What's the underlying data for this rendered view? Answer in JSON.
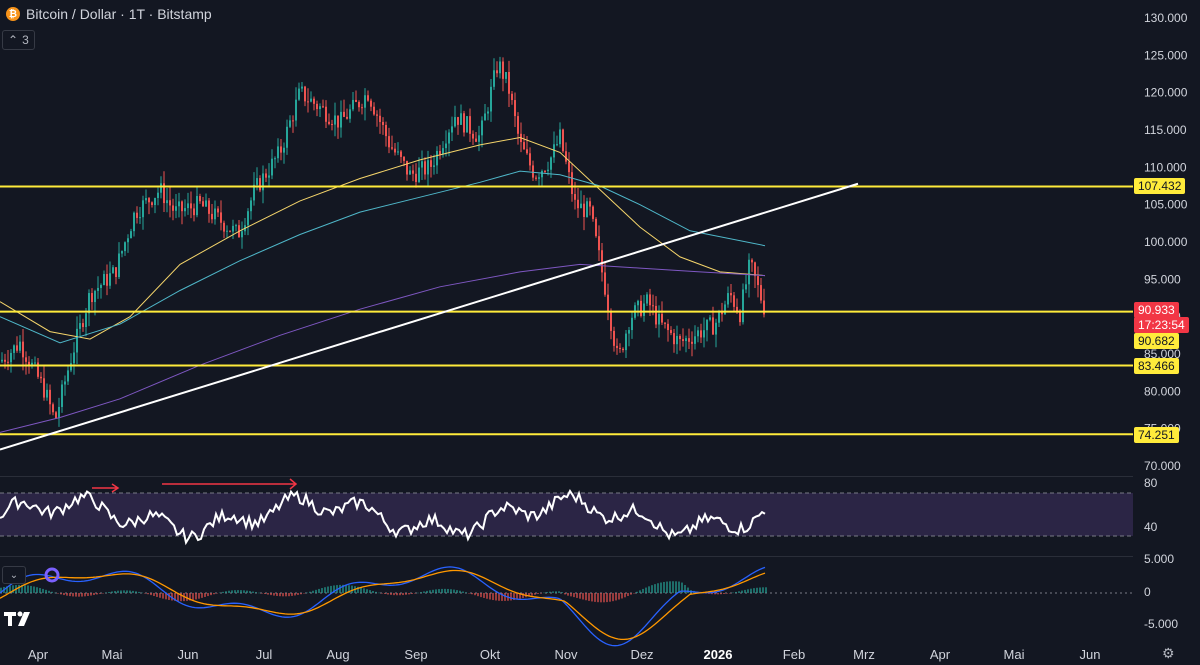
{
  "header": {
    "title": "Bitcoin / Dollar · 1T · Bitstamp",
    "indicator_toggle": "3"
  },
  "price_axis": {
    "labels": [
      "130.000",
      "125.000",
      "120.000",
      "115.000",
      "110.000",
      "105.000",
      "100.000",
      "95.000",
      "90.000",
      "85.000",
      "80.000",
      "75.000",
      "70.000"
    ],
    "values": [
      130000,
      125000,
      120000,
      115000,
      110000,
      105000,
      100000,
      95000,
      90000,
      85000,
      80000,
      75000,
      70000
    ]
  },
  "price_tags": [
    {
      "label": "107.432",
      "value": 107432,
      "color": "#ffeb3b"
    },
    {
      "label": "90.933",
      "value": 90933,
      "color": "#f23645"
    },
    {
      "label": "17:23:54",
      "value": 90933,
      "color": "#f23645",
      "sub": true
    },
    {
      "label": "90.682",
      "value": 90682,
      "color": "#ffeb3b"
    },
    {
      "label": "83.466",
      "value": 83466,
      "color": "#ffeb3b"
    },
    {
      "label": "74.251",
      "value": 74251,
      "color": "#ffeb3b"
    }
  ],
  "rsi_axis": {
    "labels": [
      "80",
      "40"
    ],
    "values": [
      80,
      40
    ]
  },
  "macd_axis": {
    "labels": [
      "5.000",
      "0",
      "-5.000"
    ],
    "values": [
      5000,
      0,
      -5000
    ]
  },
  "time_axis": {
    "labels": [
      "Apr",
      "Mai",
      "Jun",
      "Jul",
      "Aug",
      "Sep",
      "Okt",
      "Nov",
      "Dez",
      "2026",
      "Feb",
      "Mrz",
      "Apr",
      "Mai",
      "Jun"
    ]
  },
  "chart_data": {
    "type": "line",
    "series": [
      {
        "name": "Bitcoin / Dollar",
        "x": [
          "Apr",
          "Mai",
          "Jun",
          "Jul",
          "Aug",
          "Sep",
          "Okt",
          "Nov",
          "Dez",
          "2026"
        ],
        "values": [
          83000,
          95000,
          105000,
          108000,
          118000,
          110000,
          123000,
          110000,
          92000,
          92000
        ]
      }
    ],
    "horizontal_levels": [
      107432,
      90682,
      83466,
      74251
    ],
    "last_price": 90933,
    "ylim": [
      70000,
      130000
    ],
    "colors": {
      "up": "#26a69a",
      "down": "#ef5350",
      "levels": "#ffeb3b",
      "trendline": "#ffffff",
      "ma_short": "#f5d56b",
      "ma_mid": "#4fb7c9",
      "ma_long": "#7e57c2",
      "rsi": "#ffffff",
      "macd": "#2962ff",
      "signal": "#ff9800"
    }
  },
  "icons": {
    "settings": "gear-icon",
    "brand": "tradingview-logo"
  }
}
